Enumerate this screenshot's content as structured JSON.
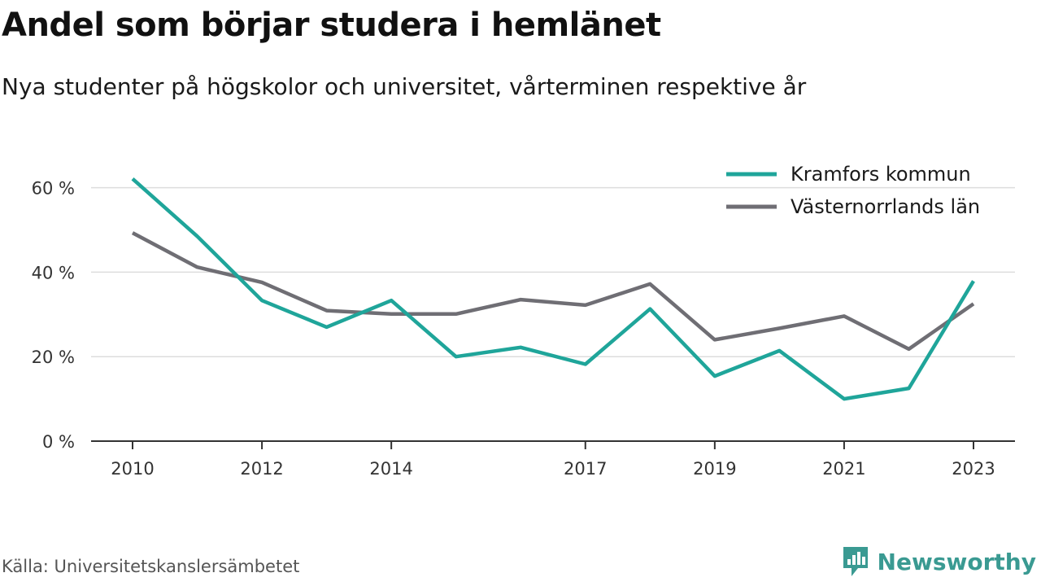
{
  "header": {
    "title": "Andel som börjar studera i hemlänet",
    "subtitle": "Nya studenter på högskolor och universitet, vårterminen respektive år"
  },
  "footer": {
    "source": "Källa: Universitetskanslersämbetet",
    "brand": "Newsworthy"
  },
  "colors": {
    "kramfors": "#1fa59a",
    "lan": "#6f6e74",
    "grid": "#dddddd",
    "axis": "#333333",
    "brand": "#3a9a92"
  },
  "chart_data": {
    "type": "line",
    "x": [
      2010,
      2011,
      2012,
      2013,
      2014,
      2015,
      2016,
      2017,
      2018,
      2019,
      2020,
      2021,
      2022,
      2023
    ],
    "x_tick_labels": [
      "2010",
      "2012",
      "2014",
      "2017",
      "2019",
      "2021",
      "2023"
    ],
    "y_ticks": [
      0,
      20,
      40,
      60
    ],
    "y_tick_labels": [
      "0 %",
      "20 %",
      "40 %",
      "60 %"
    ],
    "ylim": [
      0,
      62
    ],
    "grid": true,
    "legend_position": "top-right",
    "series": [
      {
        "name": "Kramfors kommun",
        "color": "#1fa59a",
        "values": [
          62.1,
          48.5,
          33.3,
          27.0,
          33.3,
          20.0,
          22.2,
          18.2,
          31.3,
          15.4,
          21.4,
          10.0,
          12.5,
          37.9
        ]
      },
      {
        "name": "Västernorrlands län",
        "color": "#6f6e74",
        "values": [
          49.3,
          41.2,
          37.6,
          30.9,
          30.1,
          30.1,
          33.5,
          32.2,
          37.2,
          24.0,
          26.7,
          29.6,
          21.8,
          32.5
        ]
      }
    ]
  }
}
